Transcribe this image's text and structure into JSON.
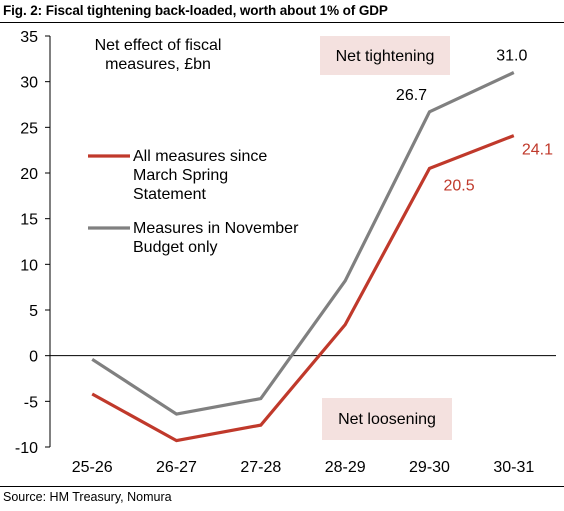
{
  "figure": {
    "title": "Fig. 2: Fiscal tightening back-loaded, worth about 1% of GDP",
    "source": "Source:  HM Treasury, Nomura"
  },
  "chart_data": {
    "type": "line",
    "categories": [
      "25-26",
      "26-27",
      "27-28",
      "28-29",
      "29-30",
      "30-31"
    ],
    "ylim": [
      -10,
      35
    ],
    "yticks": [
      -10,
      -5,
      0,
      5,
      10,
      15,
      20,
      25,
      30,
      35
    ],
    "ytick_labels": [
      "-10",
      "-5",
      "0",
      "5",
      "10",
      "15",
      "20",
      "25",
      "30",
      "35"
    ],
    "unit_label_line1": "Net effect of fiscal",
    "unit_label_line2": "measures, £bn",
    "grid": false,
    "legend_position": "left",
    "series": [
      {
        "name_line1": "All measures since",
        "name_line2": "March Spring",
        "name_line3": "Statement",
        "color": "#c0392b",
        "values": [
          -4.2,
          -9.3,
          -7.6,
          3.4,
          20.5,
          24.1
        ],
        "data_labels": [
          "",
          "",
          "",
          "",
          "20.5",
          "24.1"
        ]
      },
      {
        "name_line1": "Measures in November",
        "name_line2": "Budget only",
        "color": "#808080",
        "values": [
          -0.4,
          -6.4,
          -4.7,
          8.2,
          26.7,
          31.0
        ],
        "data_labels": [
          "",
          "",
          "",
          "",
          "26.7",
          "31.0"
        ]
      }
    ],
    "annotations": {
      "tightening": "Net tightening",
      "loosening": "Net loosening",
      "box_color": "#f4e1df"
    }
  }
}
